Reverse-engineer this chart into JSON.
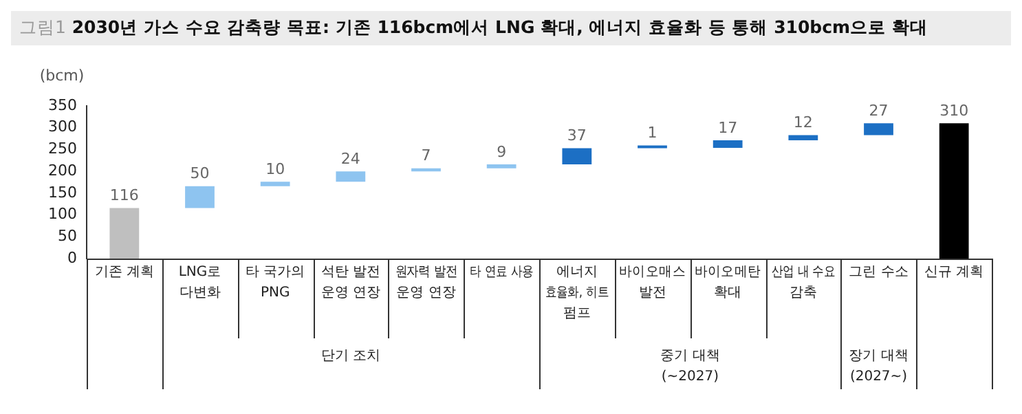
{
  "chart_data": {
    "type": "bar",
    "title": "그림1 2030년 가스 수요 감축량 목표: 기존 116bcm에서 LNG 확대, 에너지 효율화 등 통해 310bcm으로 확대",
    "ylabel": "(bcm)",
    "categories": [
      "기존 계획",
      "LNG로\n다변화",
      "타 국가의\nPNG",
      "석탄 발전\n운영 연장",
      "원자력 발전\n운영 연장",
      "타 연료 사용",
      "에너지\n효율화, 히트\n펌프",
      "바이오매스\n발전",
      "바이오메탄\n확대",
      "산업 내 수요\n감축",
      "그린 수소",
      "신규 계획"
    ],
    "values": [
      116,
      50,
      10,
      24,
      7,
      9,
      37,
      1,
      17,
      12,
      27,
      310
    ],
    "base": [
      0,
      116,
      166,
      176,
      200,
      207,
      216,
      253,
      254,
      271,
      283,
      0
    ],
    "colors": [
      "#bfbfbf",
      "#8ec4f0",
      "#8ec4f0",
      "#8ec4f0",
      "#8ec4f0",
      "#8ec4f0",
      "#1c6fc4",
      "#1c6fc4",
      "#1c6fc4",
      "#1c6fc4",
      "#1c6fc4",
      "#000000"
    ],
    "annotations": [
      "단기 조치",
      "중기 대책\n(~2027)",
      "장기 대책\n(2027~)"
    ],
    "ylim": [
      0,
      350
    ],
    "yticks": [
      0,
      50,
      100,
      150,
      200,
      250,
      300,
      350
    ],
    "data_labels": true,
    "grid": false,
    "legend": false
  }
}
